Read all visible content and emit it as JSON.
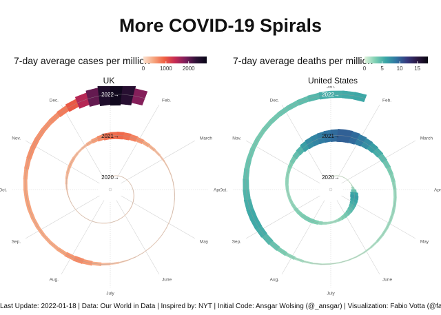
{
  "title": "More COVID-19 Spirals",
  "caption": "Last Update: 2022-01-18 | Data: Our World in Data | Inspired by: NYT | Initial Code: Ansgar Wolsing (@_ansgar) | Visualization: Fabio Votta (@favstats)",
  "chart_data": [
    {
      "type": "area",
      "subtype": "polar-spiral",
      "panel_title": "UK",
      "legend_title": "7-day average cases per million",
      "legend_ticks": [
        "0",
        "1000",
        "2000"
      ],
      "legend_range": [
        0,
        2800
      ],
      "colors": [
        "#fbe1cf",
        "#f6a47d",
        "#ef6043",
        "#c52a53",
        "#7a1d5b",
        "#2c1136",
        "#080616"
      ],
      "month_labels": [
        "Jan.",
        "Feb.",
        "March",
        "April",
        "May",
        "June",
        "July",
        "Aug.",
        "Sep.",
        "Oct.",
        "Nov.",
        "Dec."
      ],
      "year_labels": [
        "2020→",
        "2021→",
        "2022→"
      ],
      "series": [
        {
          "year": 2020,
          "values": [
            0,
            0,
            1,
            40,
            60,
            25,
            10,
            10,
            50,
            250,
            350,
            400
          ],
          "week_values": [
            0,
            0,
            0,
            0,
            0,
            0,
            0,
            0,
            0,
            1,
            1,
            2,
            10,
            25,
            50,
            68,
            70,
            68,
            62,
            55,
            46,
            38,
            30,
            22,
            18,
            15,
            12,
            10,
            9,
            9,
            10,
            11,
            12,
            14,
            17,
            25,
            45,
            80,
            130,
            190,
            250,
            300,
            340,
            360,
            350,
            300,
            250,
            280,
            380,
            500,
            640,
            800
          ]
        },
        {
          "year": 2021,
          "values": [
            750,
            300,
            80,
            40,
            40,
            150,
            500,
            400,
            450,
            600,
            580,
            1800
          ],
          "week_values": [
            850,
            880,
            820,
            700,
            560,
            430,
            340,
            260,
            190,
            140,
            100,
            80,
            75,
            70,
            55,
            45,
            40,
            38,
            36,
            35,
            38,
            45,
            60,
            90,
            140,
            200,
            280,
            400,
            540,
            640,
            560,
            460,
            420,
            410,
            420,
            440,
            460,
            480,
            470,
            450,
            480,
            540,
            600,
            610,
            590,
            580,
            620,
            750,
            1000,
            1500,
            2000,
            2500
          ]
        },
        {
          "year": 2022,
          "values": [
            2300
          ],
          "week_values": [
            2700,
            2400,
            1800
          ]
        }
      ]
    },
    {
      "type": "area",
      "subtype": "polar-spiral",
      "panel_title": "United States",
      "legend_title": "7-day average deaths per million",
      "legend_ticks": [
        "0",
        "5",
        "10",
        "15"
      ],
      "legend_range": [
        0,
        18
      ],
      "colors": [
        "#dff3dc",
        "#7fd0b3",
        "#3aa6a6",
        "#2f74a1",
        "#36397e",
        "#2a1742",
        "#090610"
      ],
      "month_labels": [
        "Jan.",
        "Feb.",
        "March",
        "April",
        "May",
        "June",
        "July",
        "Aug.",
        "Sep.",
        "Oct.",
        "Nov.",
        "Dec."
      ],
      "year_labels": [
        "2020→",
        "2021→",
        "2022→"
      ],
      "series": [
        {
          "year": 2020,
          "values": [
            0,
            0,
            0.5,
            5.5,
            4.5,
            2,
            2.5,
            3,
            2.3,
            2.3,
            4,
            8
          ],
          "week_values": [
            0,
            0,
            0,
            0,
            0,
            0,
            0,
            0,
            0,
            0,
            0.2,
            0.8,
            2,
            4,
            6,
            6.5,
            6,
            5.5,
            5,
            4.5,
            4,
            3.5,
            3,
            2.5,
            2,
            1.8,
            1.8,
            2,
            2.5,
            3,
            3.3,
            3.3,
            3.2,
            3,
            2.8,
            2.5,
            2.3,
            2.2,
            2.2,
            2.3,
            2.4,
            2.5,
            2.6,
            3,
            3.5,
            4.2,
            5,
            6.5,
            7.5,
            8,
            8.5,
            9
          ]
        },
        {
          "year": 2021,
          "values": [
            9,
            6,
            3,
            2,
            2,
            1,
            0.8,
            2.5,
            5.5,
            4.5,
            3.5,
            4.5
          ],
          "week_values": [
            9.5,
            10,
            10,
            9.5,
            8.5,
            7.5,
            6.5,
            5.5,
            4.5,
            3.8,
            3.2,
            2.8,
            2.5,
            2.2,
            2.2,
            2.2,
            2.1,
            2,
            1.9,
            1.8,
            1.5,
            1.2,
            1,
            0.9,
            0.8,
            0.8,
            0.9,
            1,
            1.3,
            1.8,
            2.5,
            3.2,
            4,
            4.8,
            5.5,
            5.8,
            5.8,
            5.5,
            5,
            4.6,
            4.2,
            3.9,
            3.7,
            3.5,
            3.4,
            3.5,
            3.6,
            3.8,
            4,
            4.3,
            4.8,
            5.5
          ]
        },
        {
          "year": 2022,
          "values": [
            5.5
          ],
          "week_values": [
            5.5,
            5.7,
            5.9
          ]
        }
      ]
    }
  ]
}
